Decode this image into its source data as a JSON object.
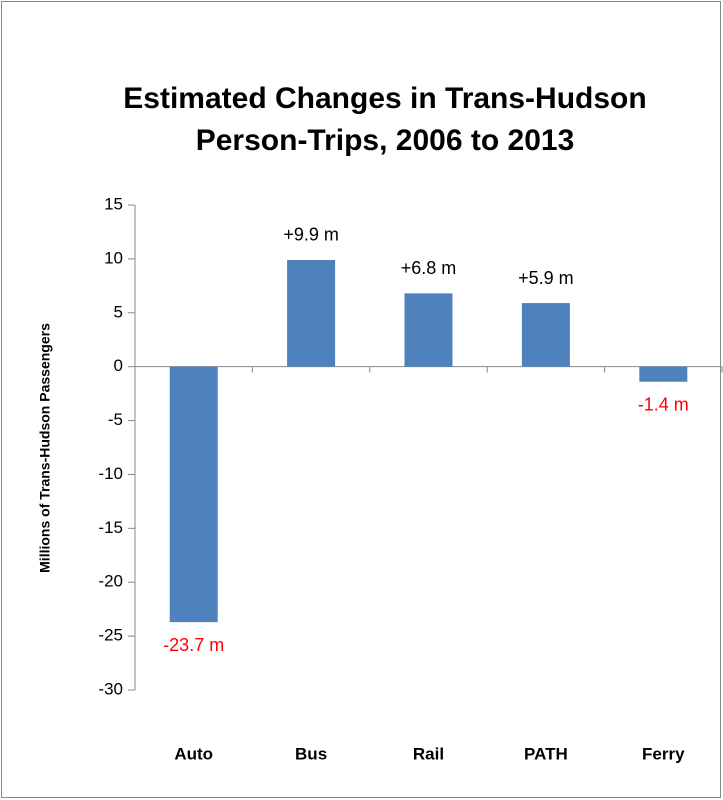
{
  "chart_data": {
    "type": "bar",
    "title": [
      "Estimated Changes in Trans-Hudson",
      "Person-Trips,  2006 to 2013"
    ],
    "y_label": "Millions of Trans-Hudson Passengers",
    "categories": [
      "Auto",
      "Bus",
      "Rail",
      "PATH",
      "Ferry"
    ],
    "values": [
      -23.7,
      9.9,
      6.8,
      5.9,
      -1.4
    ],
    "value_labels": [
      "-23.7 m",
      "+9.9 m",
      "+6.8 m",
      "+5.9 m",
      "-1.4 m"
    ],
    "color": "#4f81bd",
    "negative_label_color": "#ff0000",
    "ylim": [
      -30,
      15
    ],
    "yticks": [
      -30,
      -25,
      -20,
      -15,
      -10,
      -5,
      0,
      5,
      10,
      15
    ],
    "grid": false
  }
}
